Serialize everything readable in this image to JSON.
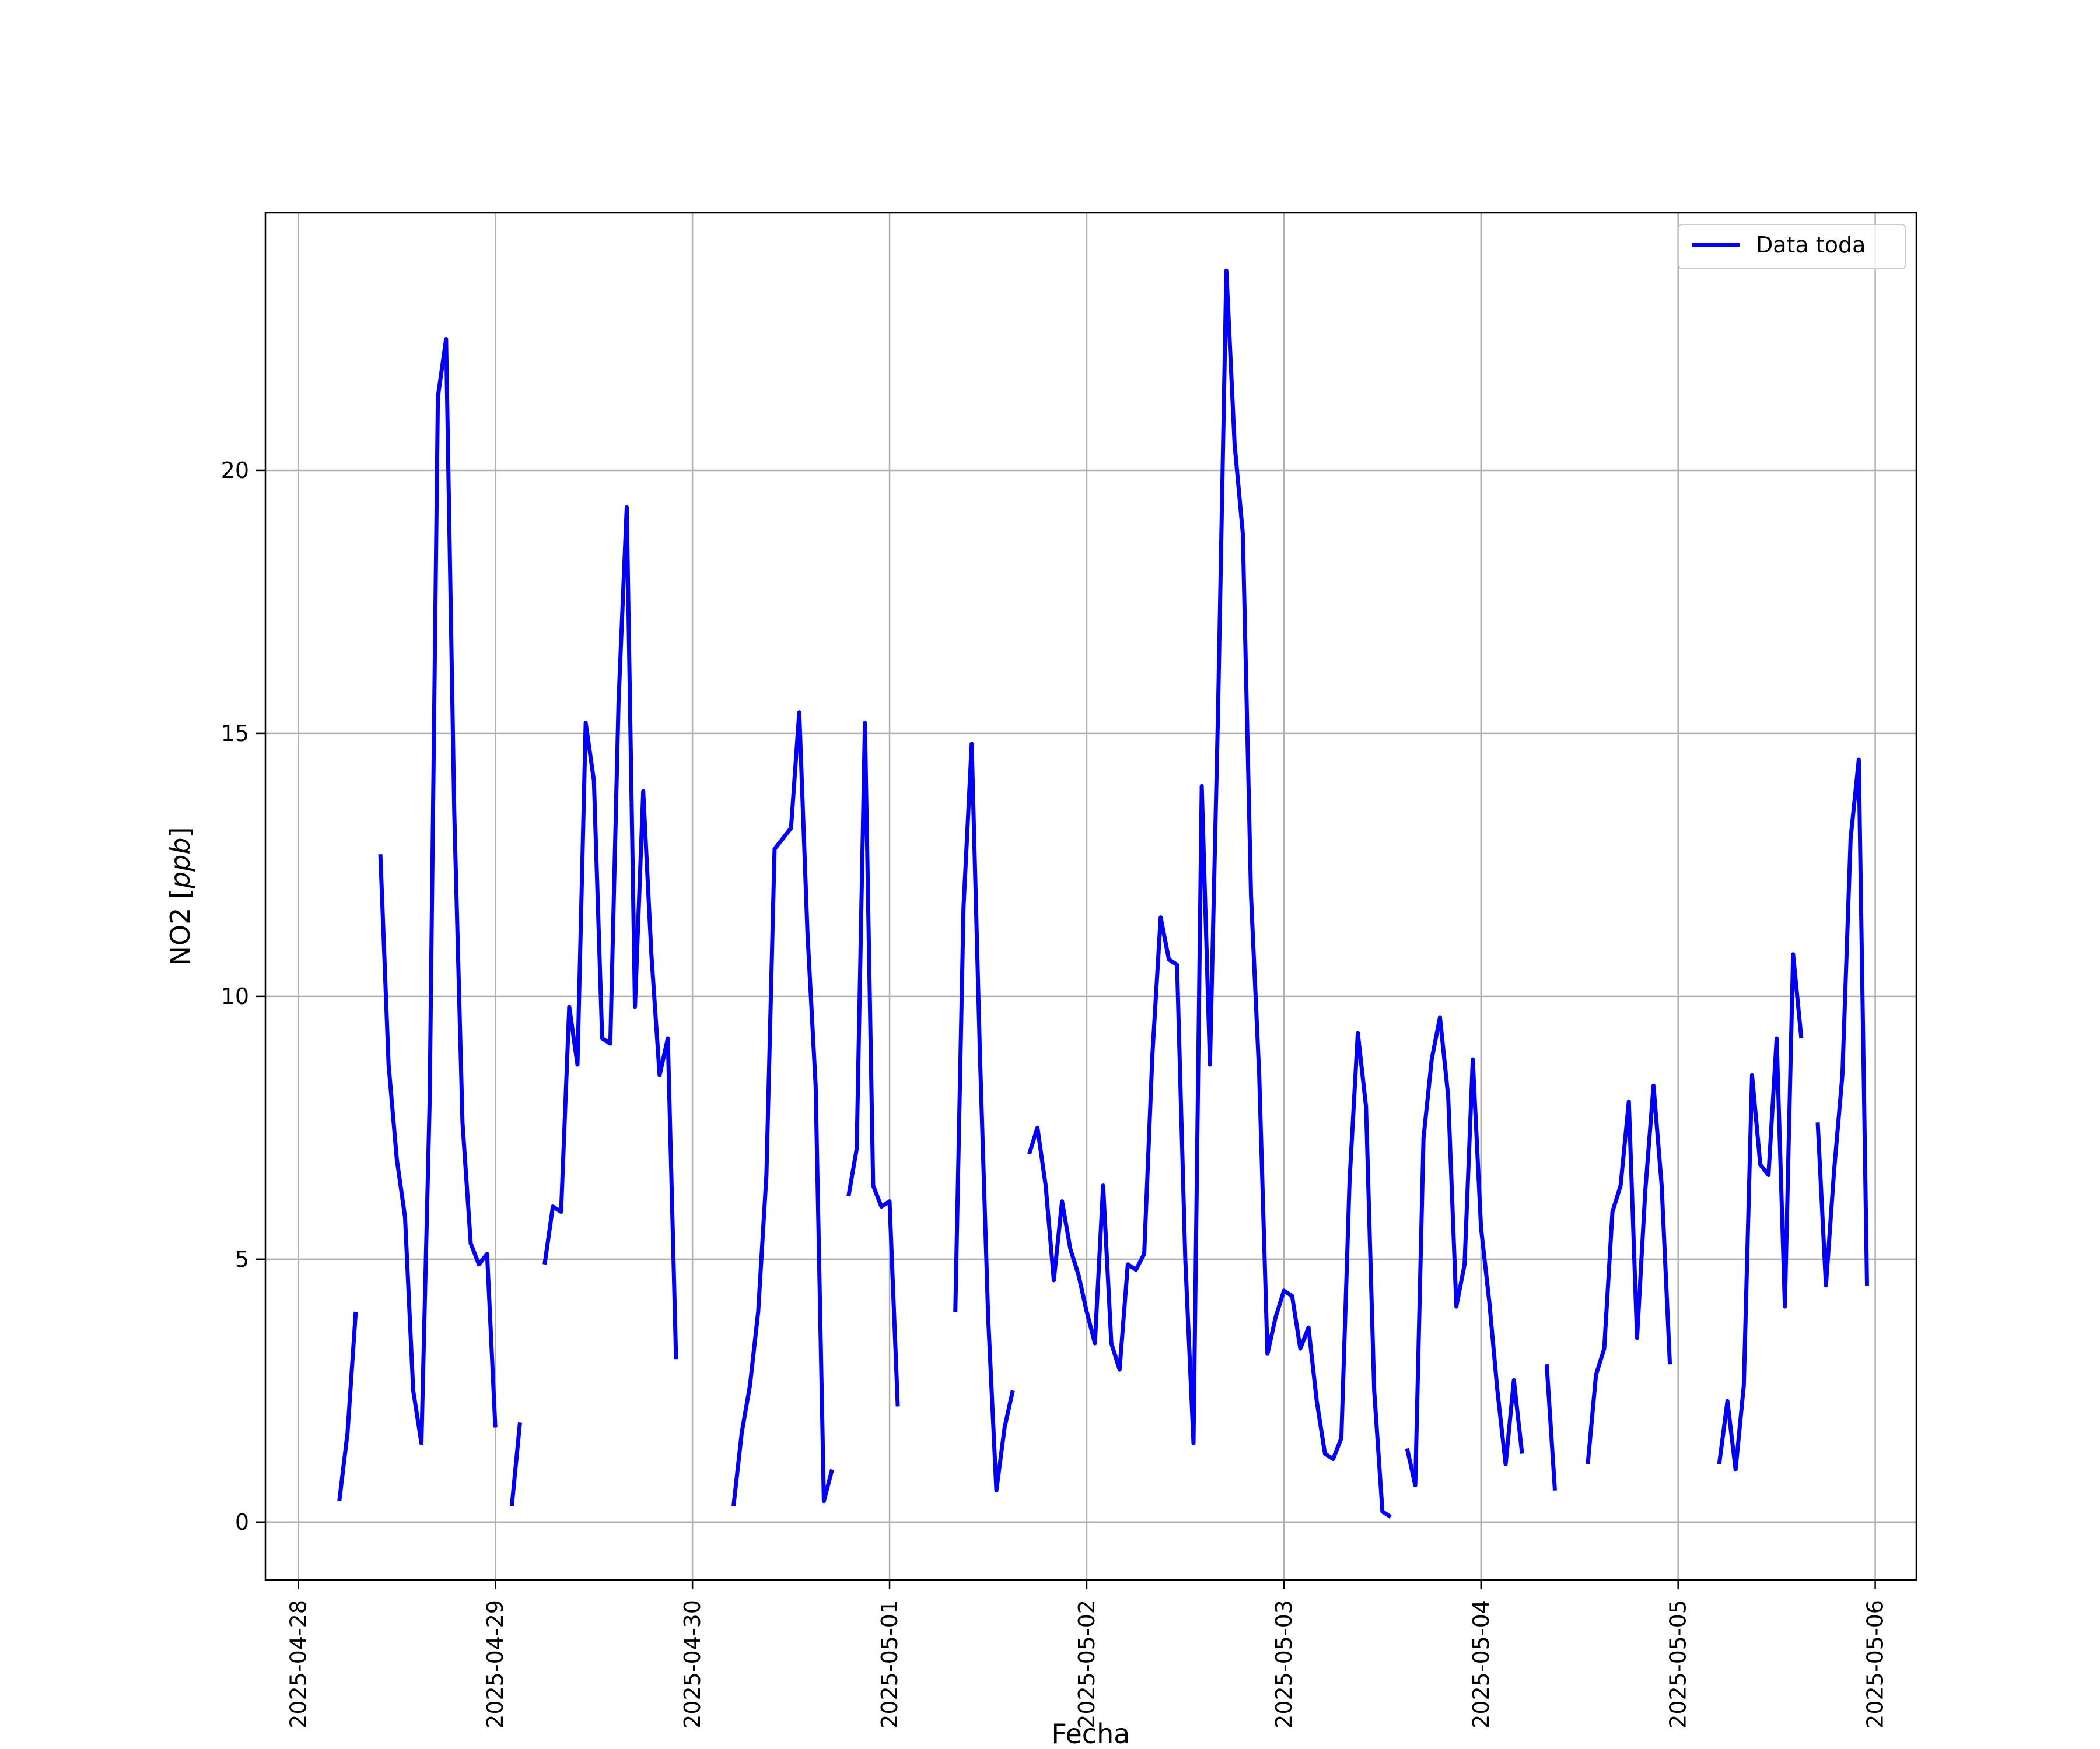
{
  "chart_data": {
    "type": "line",
    "xlabel": "Fecha",
    "ylabel": "NO2",
    "ylabel_unit": "ppb",
    "x_ticks": [
      "2025-04-28",
      "2025-04-29",
      "2025-04-30",
      "2025-05-01",
      "2025-05-02",
      "2025-05-03",
      "2025-05-04",
      "2025-05-05",
      "2025-05-06"
    ],
    "y_ticks": [
      0,
      5,
      10,
      15,
      20
    ],
    "xlim": [
      "2025-04-27 20:00",
      "2025-05-06 05:00"
    ],
    "ylim": [
      -1.1,
      24.9
    ],
    "grid": true,
    "legend": {
      "position": "top-right"
    },
    "colors": {
      "line": "#0000ff",
      "grid": "#b0b0b0"
    },
    "series": [
      {
        "name": "Data toda",
        "segments": [
          [
            [
              "2025-04-28 05:00",
              0.4
            ],
            [
              "2025-04-28 06:00",
              1.7
            ],
            [
              "2025-04-28 07:00",
              4.0
            ]
          ],
          [
            [
              "2025-04-28 10:00",
              12.7
            ],
            [
              "2025-04-28 11:00",
              8.7
            ],
            [
              "2025-04-28 12:00",
              6.9
            ],
            [
              "2025-04-28 13:00",
              5.8
            ],
            [
              "2025-04-28 14:00",
              2.5
            ],
            [
              "2025-04-28 15:00",
              1.5
            ],
            [
              "2025-04-28 16:00",
              8.0
            ],
            [
              "2025-04-28 17:00",
              21.4
            ],
            [
              "2025-04-28 18:00",
              22.5
            ],
            [
              "2025-04-28 19:00",
              13.5
            ],
            [
              "2025-04-28 20:00",
              7.6
            ],
            [
              "2025-04-28 21:00",
              5.3
            ],
            [
              "2025-04-28 22:00",
              4.9
            ],
            [
              "2025-04-28 23:00",
              5.1
            ],
            [
              "2025-04-29 00:00",
              1.8
            ]
          ],
          [
            [
              "2025-04-29 02:00",
              0.3
            ],
            [
              "2025-04-29 03:00",
              1.9
            ]
          ],
          [
            [
              "2025-04-29 06:00",
              4.9
            ],
            [
              "2025-04-29 07:00",
              6.0
            ],
            [
              "2025-04-29 08:00",
              5.9
            ],
            [
              "2025-04-29 09:00",
              9.8
            ],
            [
              "2025-04-29 10:00",
              8.7
            ],
            [
              "2025-04-29 11:00",
              15.2
            ],
            [
              "2025-04-29 12:00",
              14.1
            ],
            [
              "2025-04-29 13:00",
              9.2
            ],
            [
              "2025-04-29 14:00",
              9.1
            ],
            [
              "2025-04-29 15:00",
              15.6
            ],
            [
              "2025-04-29 16:00",
              19.3
            ],
            [
              "2025-04-29 17:00",
              9.8
            ],
            [
              "2025-04-29 18:00",
              13.9
            ],
            [
              "2025-04-29 19:00",
              10.8
            ],
            [
              "2025-04-29 20:00",
              8.5
            ],
            [
              "2025-04-29 21:00",
              9.2
            ],
            [
              "2025-04-29 22:00",
              3.1
            ]
          ],
          [
            [
              "2025-04-30 05:00",
              0.3
            ],
            [
              "2025-04-30 06:00",
              1.7
            ],
            [
              "2025-04-30 07:00",
              2.6
            ],
            [
              "2025-04-30 08:00",
              4.0
            ],
            [
              "2025-04-30 09:00",
              6.6
            ],
            [
              "2025-04-30 10:00",
              12.8
            ],
            [
              "2025-04-30 11:00",
              13.0
            ],
            [
              "2025-04-30 12:00",
              13.2
            ],
            [
              "2025-04-30 13:00",
              15.4
            ],
            [
              "2025-04-30 14:00",
              11.2
            ],
            [
              "2025-04-30 15:00",
              8.3
            ],
            [
              "2025-04-30 16:00",
              0.4
            ],
            [
              "2025-04-30 17:00",
              1.0
            ]
          ],
          [
            [
              "2025-04-30 19:00",
              6.2
            ],
            [
              "2025-04-30 20:00",
              7.1
            ],
            [
              "2025-04-30 21:00",
              15.2
            ],
            [
              "2025-04-30 22:00",
              6.4
            ],
            [
              "2025-04-30 23:00",
              6.0
            ],
            [
              "2025-05-01 00:00",
              6.1
            ],
            [
              "2025-05-01 01:00",
              2.2
            ]
          ],
          [
            [
              "2025-05-01 08:00",
              4.0
            ],
            [
              "2025-05-01 09:00",
              11.7
            ],
            [
              "2025-05-01 10:00",
              14.8
            ],
            [
              "2025-05-01 11:00",
              8.9
            ],
            [
              "2025-05-01 12:00",
              3.9
            ],
            [
              "2025-05-01 13:00",
              0.6
            ],
            [
              "2025-05-01 14:00",
              1.8
            ],
            [
              "2025-05-01 15:00",
              2.5
            ]
          ],
          [
            [
              "2025-05-01 17:00",
              7.0
            ],
            [
              "2025-05-01 18:00",
              7.5
            ],
            [
              "2025-05-01 19:00",
              6.4
            ],
            [
              "2025-05-01 20:00",
              4.6
            ],
            [
              "2025-05-01 21:00",
              6.1
            ],
            [
              "2025-05-01 22:00",
              5.2
            ],
            [
              "2025-05-01 23:00",
              4.7
            ],
            [
              "2025-05-02 00:00",
              4.0
            ],
            [
              "2025-05-02 01:00",
              3.4
            ],
            [
              "2025-05-02 02:00",
              6.4
            ],
            [
              "2025-05-02 03:00",
              3.4
            ],
            [
              "2025-05-02 04:00",
              2.9
            ],
            [
              "2025-05-02 05:00",
              4.9
            ],
            [
              "2025-05-02 06:00",
              4.8
            ],
            [
              "2025-05-02 07:00",
              5.1
            ],
            [
              "2025-05-02 08:00",
              8.9
            ],
            [
              "2025-05-02 09:00",
              11.5
            ],
            [
              "2025-05-02 10:00",
              10.7
            ],
            [
              "2025-05-02 11:00",
              10.6
            ],
            [
              "2025-05-02 12:00",
              5.0
            ],
            [
              "2025-05-02 13:00",
              1.5
            ],
            [
              "2025-05-02 14:00",
              14.0
            ],
            [
              "2025-05-02 15:00",
              8.7
            ],
            [
              "2025-05-02 16:00",
              15.5
            ],
            [
              "2025-05-02 17:00",
              23.8
            ],
            [
              "2025-05-02 18:00",
              20.5
            ],
            [
              "2025-05-02 19:00",
              18.8
            ],
            [
              "2025-05-02 20:00",
              11.9
            ],
            [
              "2025-05-02 21:00",
              8.5
            ],
            [
              "2025-05-02 22:00",
              3.2
            ],
            [
              "2025-05-02 23:00",
              3.9
            ],
            [
              "2025-05-03 00:00",
              4.4
            ],
            [
              "2025-05-03 01:00",
              4.3
            ],
            [
              "2025-05-03 02:00",
              3.3
            ],
            [
              "2025-05-03 03:00",
              3.7
            ],
            [
              "2025-05-03 04:00",
              2.3
            ],
            [
              "2025-05-03 05:00",
              1.3
            ],
            [
              "2025-05-03 06:00",
              1.2
            ],
            [
              "2025-05-03 07:00",
              1.6
            ],
            [
              "2025-05-03 08:00",
              6.5
            ],
            [
              "2025-05-03 09:00",
              9.3
            ],
            [
              "2025-05-03 10:00",
              7.9
            ],
            [
              "2025-05-03 11:00",
              2.5
            ],
            [
              "2025-05-03 12:00",
              0.2
            ],
            [
              "2025-05-03 13:00",
              0.1
            ]
          ],
          [
            [
              "2025-05-03 15:00",
              1.4
            ],
            [
              "2025-05-03 16:00",
              0.7
            ],
            [
              "2025-05-03 17:00",
              7.3
            ],
            [
              "2025-05-03 18:00",
              8.8
            ],
            [
              "2025-05-03 19:00",
              9.6
            ],
            [
              "2025-05-03 20:00",
              8.1
            ],
            [
              "2025-05-03 21:00",
              4.1
            ],
            [
              "2025-05-03 22:00",
              4.9
            ],
            [
              "2025-05-03 23:00",
              8.8
            ],
            [
              "2025-05-04 00:00",
              5.6
            ],
            [
              "2025-05-04 01:00",
              4.2
            ],
            [
              "2025-05-04 02:00",
              2.5
            ],
            [
              "2025-05-04 03:00",
              1.1
            ],
            [
              "2025-05-04 04:00",
              2.7
            ],
            [
              "2025-05-04 05:00",
              1.3
            ]
          ],
          [
            [
              "2025-05-04 08:00",
              3.0
            ],
            [
              "2025-05-04 09:00",
              0.6
            ]
          ],
          [
            [
              "2025-05-04 13:00",
              1.1
            ],
            [
              "2025-05-04 14:00",
              2.8
            ],
            [
              "2025-05-04 15:00",
              3.3
            ],
            [
              "2025-05-04 16:00",
              5.9
            ],
            [
              "2025-05-04 17:00",
              6.4
            ],
            [
              "2025-05-04 18:00",
              8.0
            ],
            [
              "2025-05-04 19:00",
              3.5
            ],
            [
              "2025-05-04 20:00",
              6.3
            ],
            [
              "2025-05-04 21:00",
              8.3
            ],
            [
              "2025-05-04 22:00",
              6.4
            ],
            [
              "2025-05-04 23:00",
              3.0
            ]
          ],
          [
            [
              "2025-05-05 05:00",
              1.1
            ],
            [
              "2025-05-05 06:00",
              2.3
            ],
            [
              "2025-05-05 07:00",
              1.0
            ],
            [
              "2025-05-05 08:00",
              2.6
            ],
            [
              "2025-05-05 09:00",
              8.5
            ],
            [
              "2025-05-05 10:00",
              6.8
            ],
            [
              "2025-05-05 11:00",
              6.6
            ],
            [
              "2025-05-05 12:00",
              9.2
            ],
            [
              "2025-05-05 13:00",
              4.1
            ],
            [
              "2025-05-05 14:00",
              10.8
            ],
            [
              "2025-05-05 15:00",
              9.2
            ]
          ],
          [
            [
              "2025-05-05 17:00",
              7.6
            ],
            [
              "2025-05-05 18:00",
              4.5
            ],
            [
              "2025-05-05 19:00",
              6.7
            ],
            [
              "2025-05-05 20:00",
              8.5
            ],
            [
              "2025-05-05 21:00",
              13.0
            ],
            [
              "2025-05-05 22:00",
              14.5
            ],
            [
              "2025-05-05 23:00",
              4.5
            ]
          ]
        ]
      }
    ]
  }
}
